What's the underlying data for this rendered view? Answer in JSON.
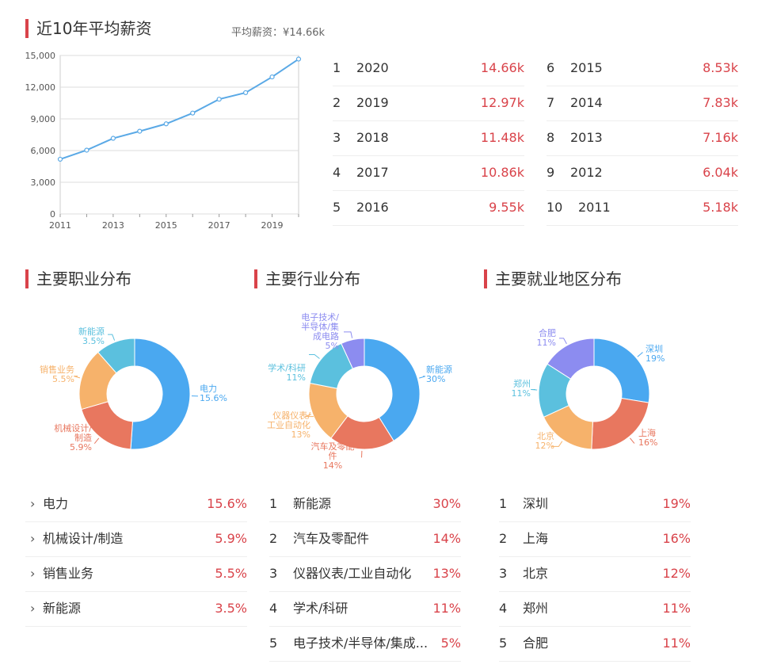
{
  "salary": {
    "title": "近10年平均薪资",
    "avg_label": "平均薪资：¥14.66k",
    "ranking_left": [
      {
        "rank": "1",
        "year": "2020",
        "value": "14.66k"
      },
      {
        "rank": "2",
        "year": "2019",
        "value": "12.97k"
      },
      {
        "rank": "3",
        "year": "2018",
        "value": "11.48k"
      },
      {
        "rank": "4",
        "year": "2017",
        "value": "10.86k"
      },
      {
        "rank": "5",
        "year": "2016",
        "value": "9.55k"
      }
    ],
    "ranking_right": [
      {
        "rank": "6",
        "year": "2015",
        "value": "8.53k"
      },
      {
        "rank": "7",
        "year": "2014",
        "value": "7.83k"
      },
      {
        "rank": "8",
        "year": "2013",
        "value": "7.16k"
      },
      {
        "rank": "9",
        "year": "2012",
        "value": "6.04k"
      },
      {
        "rank": "10",
        "year": "2011",
        "value": "5.18k"
      }
    ]
  },
  "occupation": {
    "title": "主要职业分布",
    "list": [
      {
        "name": "电力",
        "value": "15.6%"
      },
      {
        "name": "机械设计/制造",
        "value": "5.9%"
      },
      {
        "name": "销售业务",
        "value": "5.5%"
      },
      {
        "name": "新能源",
        "value": "3.5%"
      }
    ]
  },
  "industry": {
    "title": "主要行业分布",
    "list": [
      {
        "rank": "1",
        "name": "新能源",
        "value": "30%"
      },
      {
        "rank": "2",
        "name": "汽车及零配件",
        "value": "14%"
      },
      {
        "rank": "3",
        "name": "仪器仪表/工业自动化",
        "value": "13%"
      },
      {
        "rank": "4",
        "name": "学术/科研",
        "value": "11%"
      },
      {
        "rank": "5",
        "name": "电子技术/半导体/集成...",
        "value": "5%"
      }
    ]
  },
  "region": {
    "title": "主要就业地区分布",
    "list": [
      {
        "rank": "1",
        "name": "深圳",
        "value": "19%"
      },
      {
        "rank": "2",
        "name": "上海",
        "value": "16%"
      },
      {
        "rank": "3",
        "name": "北京",
        "value": "12%"
      },
      {
        "rank": "4",
        "name": "郑州",
        "value": "11%"
      },
      {
        "rank": "5",
        "name": "合肥",
        "value": "11%"
      }
    ]
  },
  "chart_data": [
    {
      "type": "line",
      "x": [
        "2011",
        "2012",
        "2013",
        "2014",
        "2015",
        "2016",
        "2017",
        "2018",
        "2019",
        "2020"
      ],
      "x_tick_labels": [
        "2011",
        "2013",
        "2015",
        "2017",
        "2019"
      ],
      "values": [
        5180,
        6040,
        7160,
        7830,
        8530,
        9550,
        10860,
        11480,
        12970,
        14660
      ],
      "ylim": [
        0,
        15000
      ],
      "y_tick_labels": [
        "0",
        "3,000",
        "6,000",
        "9,000",
        "12,000",
        "15,000"
      ],
      "grid": true,
      "color": "#5aa9e6"
    },
    {
      "type": "pie",
      "donut": true,
      "slices": [
        {
          "label_lines": [
            "电力",
            "15.6%"
          ],
          "value": 15.6,
          "color": "#4aa8f0"
        },
        {
          "label_lines": [
            "机械设计/",
            "制造",
            "5.9%"
          ],
          "value": 5.9,
          "color": "#e8775f"
        },
        {
          "label_lines": [
            "销售业务",
            "5.5%"
          ],
          "value": 5.5,
          "color": "#f6b26b"
        },
        {
          "label_lines": [
            "新能源",
            "3.5%"
          ],
          "value": 3.5,
          "color": "#5bc0de"
        }
      ]
    },
    {
      "type": "pie",
      "donut": true,
      "slices": [
        {
          "label_lines": [
            "新能源",
            "30%"
          ],
          "value": 30,
          "color": "#4aa8f0"
        },
        {
          "label_lines": [
            "汽车及零配",
            "件",
            "14%"
          ],
          "value": 14,
          "color": "#e8775f"
        },
        {
          "label_lines": [
            "仪器仪表/",
            "工业自动化",
            "13%"
          ],
          "value": 13,
          "color": "#f6b26b"
        },
        {
          "label_lines": [
            "学术/科研",
            "11%"
          ],
          "value": 11,
          "color": "#5bc0de"
        },
        {
          "label_lines": [
            "电子技术/",
            "半导体/集",
            "成电路",
            "5%"
          ],
          "value": 5,
          "color": "#8c8cf0"
        }
      ]
    },
    {
      "type": "pie",
      "donut": true,
      "slices": [
        {
          "label_lines": [
            "深圳",
            "19%"
          ],
          "value": 19,
          "color": "#4aa8f0"
        },
        {
          "label_lines": [
            "上海",
            "16%"
          ],
          "value": 16,
          "color": "#e8775f"
        },
        {
          "label_lines": [
            "北京",
            "12%"
          ],
          "value": 12,
          "color": "#f6b26b"
        },
        {
          "label_lines": [
            "郑州",
            "11%"
          ],
          "value": 11,
          "color": "#5bc0de"
        },
        {
          "label_lines": [
            "合肥",
            "11%"
          ],
          "value": 11,
          "color": "#8c8cf0"
        }
      ]
    }
  ]
}
